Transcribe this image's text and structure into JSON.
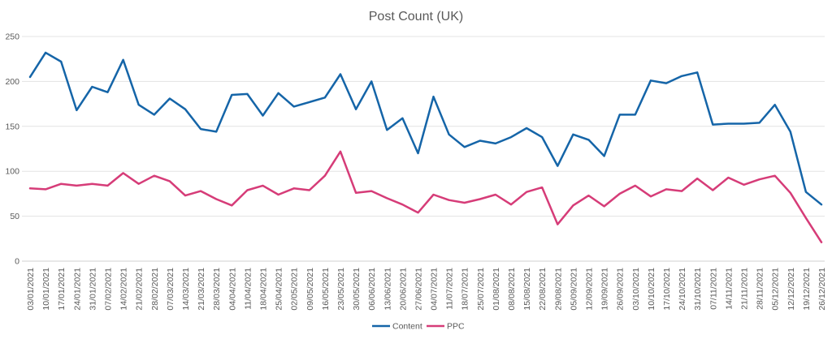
{
  "chart_data": {
    "type": "line",
    "title": "Post Count (UK)",
    "xlabel": "",
    "ylabel": "",
    "ylim": [
      0,
      250
    ],
    "yticks": [
      0,
      50,
      100,
      150,
      200,
      250
    ],
    "grid": true,
    "legend": "bottom",
    "categories": [
      "03/01/2021",
      "10/01/2021",
      "17/01/2021",
      "24/01/2021",
      "31/01/2021",
      "07/02/2021",
      "14/02/2021",
      "21/02/2021",
      "28/02/2021",
      "07/03/2021",
      "14/03/2021",
      "21/03/2021",
      "28/03/2021",
      "04/04/2021",
      "11/04/2021",
      "18/04/2021",
      "25/04/2021",
      "02/05/2021",
      "09/05/2021",
      "16/05/2021",
      "23/05/2021",
      "30/05/2021",
      "06/06/2021",
      "13/06/2021",
      "20/06/2021",
      "27/06/2021",
      "04/07/2021",
      "11/07/2021",
      "18/07/2021",
      "25/07/2021",
      "01/08/2021",
      "08/08/2021",
      "15/08/2021",
      "22/08/2021",
      "29/08/2021",
      "05/09/2021",
      "12/09/2021",
      "19/09/2021",
      "26/09/2021",
      "03/10/2021",
      "10/10/2021",
      "17/10/2021",
      "24/10/2021",
      "31/10/2021",
      "07/11/2021",
      "14/11/2021",
      "21/11/2021",
      "28/11/2021",
      "05/12/2021",
      "12/12/2021",
      "19/12/2021",
      "26/12/2021"
    ],
    "series": [
      {
        "name": "Content",
        "color": "#1565a8",
        "values": [
          205,
          232,
          222,
          168,
          194,
          188,
          224,
          174,
          163,
          181,
          169,
          147,
          144,
          185,
          186,
          162,
          187,
          172,
          177,
          182,
          208,
          169,
          200,
          146,
          159,
          120,
          183,
          141,
          127,
          134,
          131,
          138,
          148,
          138,
          106,
          141,
          135,
          117,
          163,
          163,
          201,
          198,
          206,
          210,
          152,
          153,
          153,
          154,
          174,
          144,
          77,
          63
        ]
      },
      {
        "name": "PPC",
        "color": "#d63c78",
        "values": [
          81,
          80,
          86,
          84,
          86,
          84,
          98,
          86,
          95,
          89,
          73,
          78,
          69,
          62,
          79,
          84,
          74,
          81,
          79,
          95,
          122,
          76,
          78,
          70,
          63,
          54,
          74,
          68,
          65,
          69,
          74,
          63,
          77,
          82,
          41,
          62,
          73,
          61,
          75,
          84,
          72,
          80,
          78,
          92,
          79,
          93,
          85,
          91,
          95,
          76,
          48,
          21
        ]
      }
    ]
  }
}
